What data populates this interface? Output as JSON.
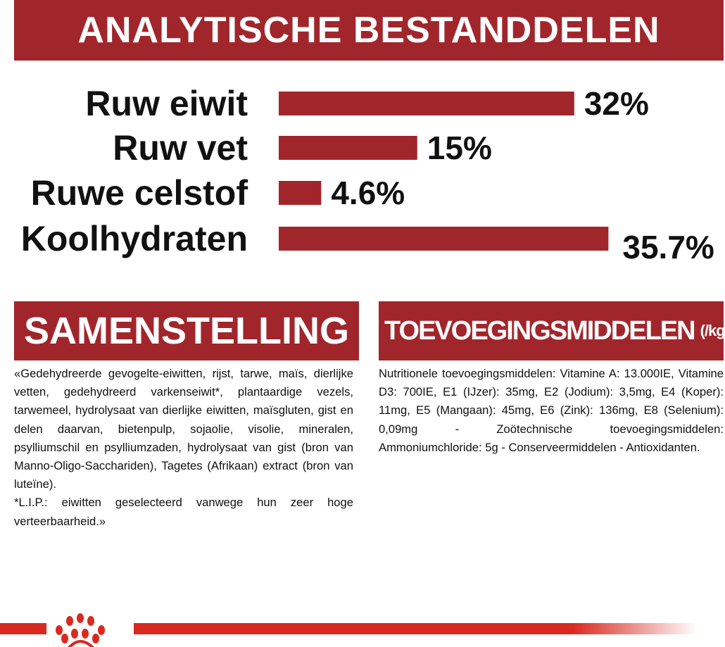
{
  "header": {
    "title": "ANALYTISCHE BESTANDDELEN"
  },
  "chart_data": {
    "type": "bar",
    "orientation": "horizontal",
    "categories": [
      "Ruw eiwit",
      "Ruw vet",
      "Ruwe celstof",
      "Koolhydraten"
    ],
    "values": [
      32,
      15,
      4.6,
      35.7
    ],
    "value_labels": [
      "32%",
      "15%",
      "4.6%",
      "35.7%"
    ],
    "unit": "%",
    "bar_color": "#a1262c",
    "grid": false
  },
  "composition": {
    "title": "SAMENSTELLING",
    "text": "«Gedehydreerde gevogelte-eiwitten, rijst, tarwe, maïs, dierlijke vetten, gedehydreerd varkenseiwit*, plantaardige vezels, tarwemeel, hydrolysaat van dierlijke eiwitten, maïsgluten, gist en delen daarvan, bietenpulp, sojaolie, visolie, mineralen, psylliumschil en psylliumzaden, hydrolysaat van gist (bron van Manno-Oligo-Sacchariden), Tagetes (Afrikaan) extract (bron van luteïne).",
    "note": "*L.I.P.: eiwitten geselecteerd vanwege hun zeer hoge verteerbaarheid.»"
  },
  "additives": {
    "title": "TOEVOEGINGSMIDDELEN",
    "unit": "(/kg)",
    "text": "Nutritionele toevoegingsmiddelen: Vitamine A: 13.000IE, Vitamine D3: 700IE, E1 (IJzer): 35mg, E2 (Jodium): 3,5mg, E4 (Koper): 11mg, E5 (Mangaan): 45mg, E6 (Zink): 136mg, E8 (Selenium): 0,09mg - Zoötechnische toevoegingsmiddelen: Ammoniumchloride: 5g - Conserveermiddelen - Antioxidanten."
  },
  "colors": {
    "brand_red": "#a1262c",
    "footer_red": "#da2a20"
  },
  "footer": {
    "logo": "royal-canin-crown-logo"
  }
}
